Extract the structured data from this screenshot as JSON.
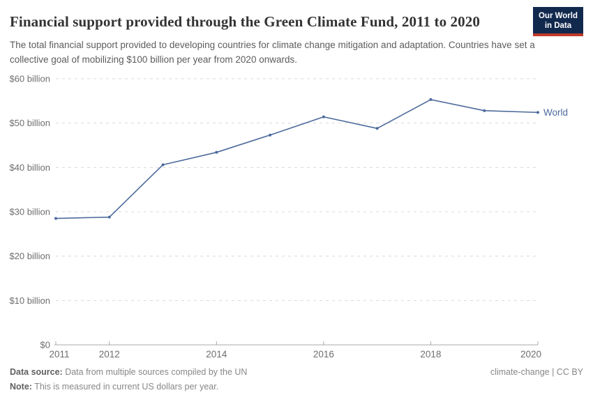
{
  "header": {
    "title": "Financial support provided through the Green Climate Fund, 2011 to 2020",
    "subtitle": "The total financial support provided to developing countries for climate change mitigation and adaptation. Countries have set a collective goal of mobilizing $100 billion per year from 2020 onwards.",
    "logo": {
      "line1": "Our World",
      "line2": "in Data"
    }
  },
  "chart_data": {
    "type": "line",
    "title": "Financial support provided through the Green Climate Fund, 2011 to 2020",
    "xlabel": "",
    "ylabel": "current US dollars per year",
    "x": [
      2011,
      2012,
      2013,
      2014,
      2015,
      2016,
      2017,
      2018,
      2019,
      2020
    ],
    "series": [
      {
        "name": "World",
        "values": [
          28.5,
          28.8,
          40.6,
          43.4,
          47.3,
          51.4,
          48.8,
          55.3,
          52.8,
          52.4
        ],
        "color": "#4C6A9C"
      }
    ],
    "xlim": [
      2011,
      2020
    ],
    "ylim": [
      0,
      60
    ],
    "y_ticks": [
      {
        "value": 0,
        "label": "$0"
      },
      {
        "value": 10,
        "label": "$10 billion"
      },
      {
        "value": 20,
        "label": "$20 billion"
      },
      {
        "value": 30,
        "label": "$30 billion"
      },
      {
        "value": 40,
        "label": "$40 billion"
      },
      {
        "value": 50,
        "label": "$50 billion"
      },
      {
        "value": 60,
        "label": "$60 billion"
      }
    ],
    "x_ticks": [
      {
        "year": 2011,
        "label": "2011",
        "dx": 5
      },
      {
        "year": 2012,
        "label": "2012",
        "dx": 0
      },
      {
        "year": 2014,
        "label": "2014",
        "dx": 0
      },
      {
        "year": 2016,
        "label": "2016",
        "dx": 0
      },
      {
        "year": 2018,
        "label": "2018",
        "dx": 0
      },
      {
        "year": 2020,
        "label": "2020",
        "dx": -10
      }
    ],
    "grid": "horizontal-dashed",
    "legend": "line-end-label",
    "end_label": "World"
  },
  "footer": {
    "datasource_label": "Data source:",
    "datasource_text": " Data from multiple sources compiled by the UN",
    "note_label": "Note:",
    "note_text": " This is measured in current US dollars per year.",
    "license": "climate-change | CC BY"
  },
  "colors": {
    "line": "#4C6A9C",
    "grid": "#dadada",
    "axis": "#a8a8a8",
    "tick_label": "#6e6e6e",
    "logo_bg": "#12294E",
    "logo_stripe": "#C0392B"
  }
}
